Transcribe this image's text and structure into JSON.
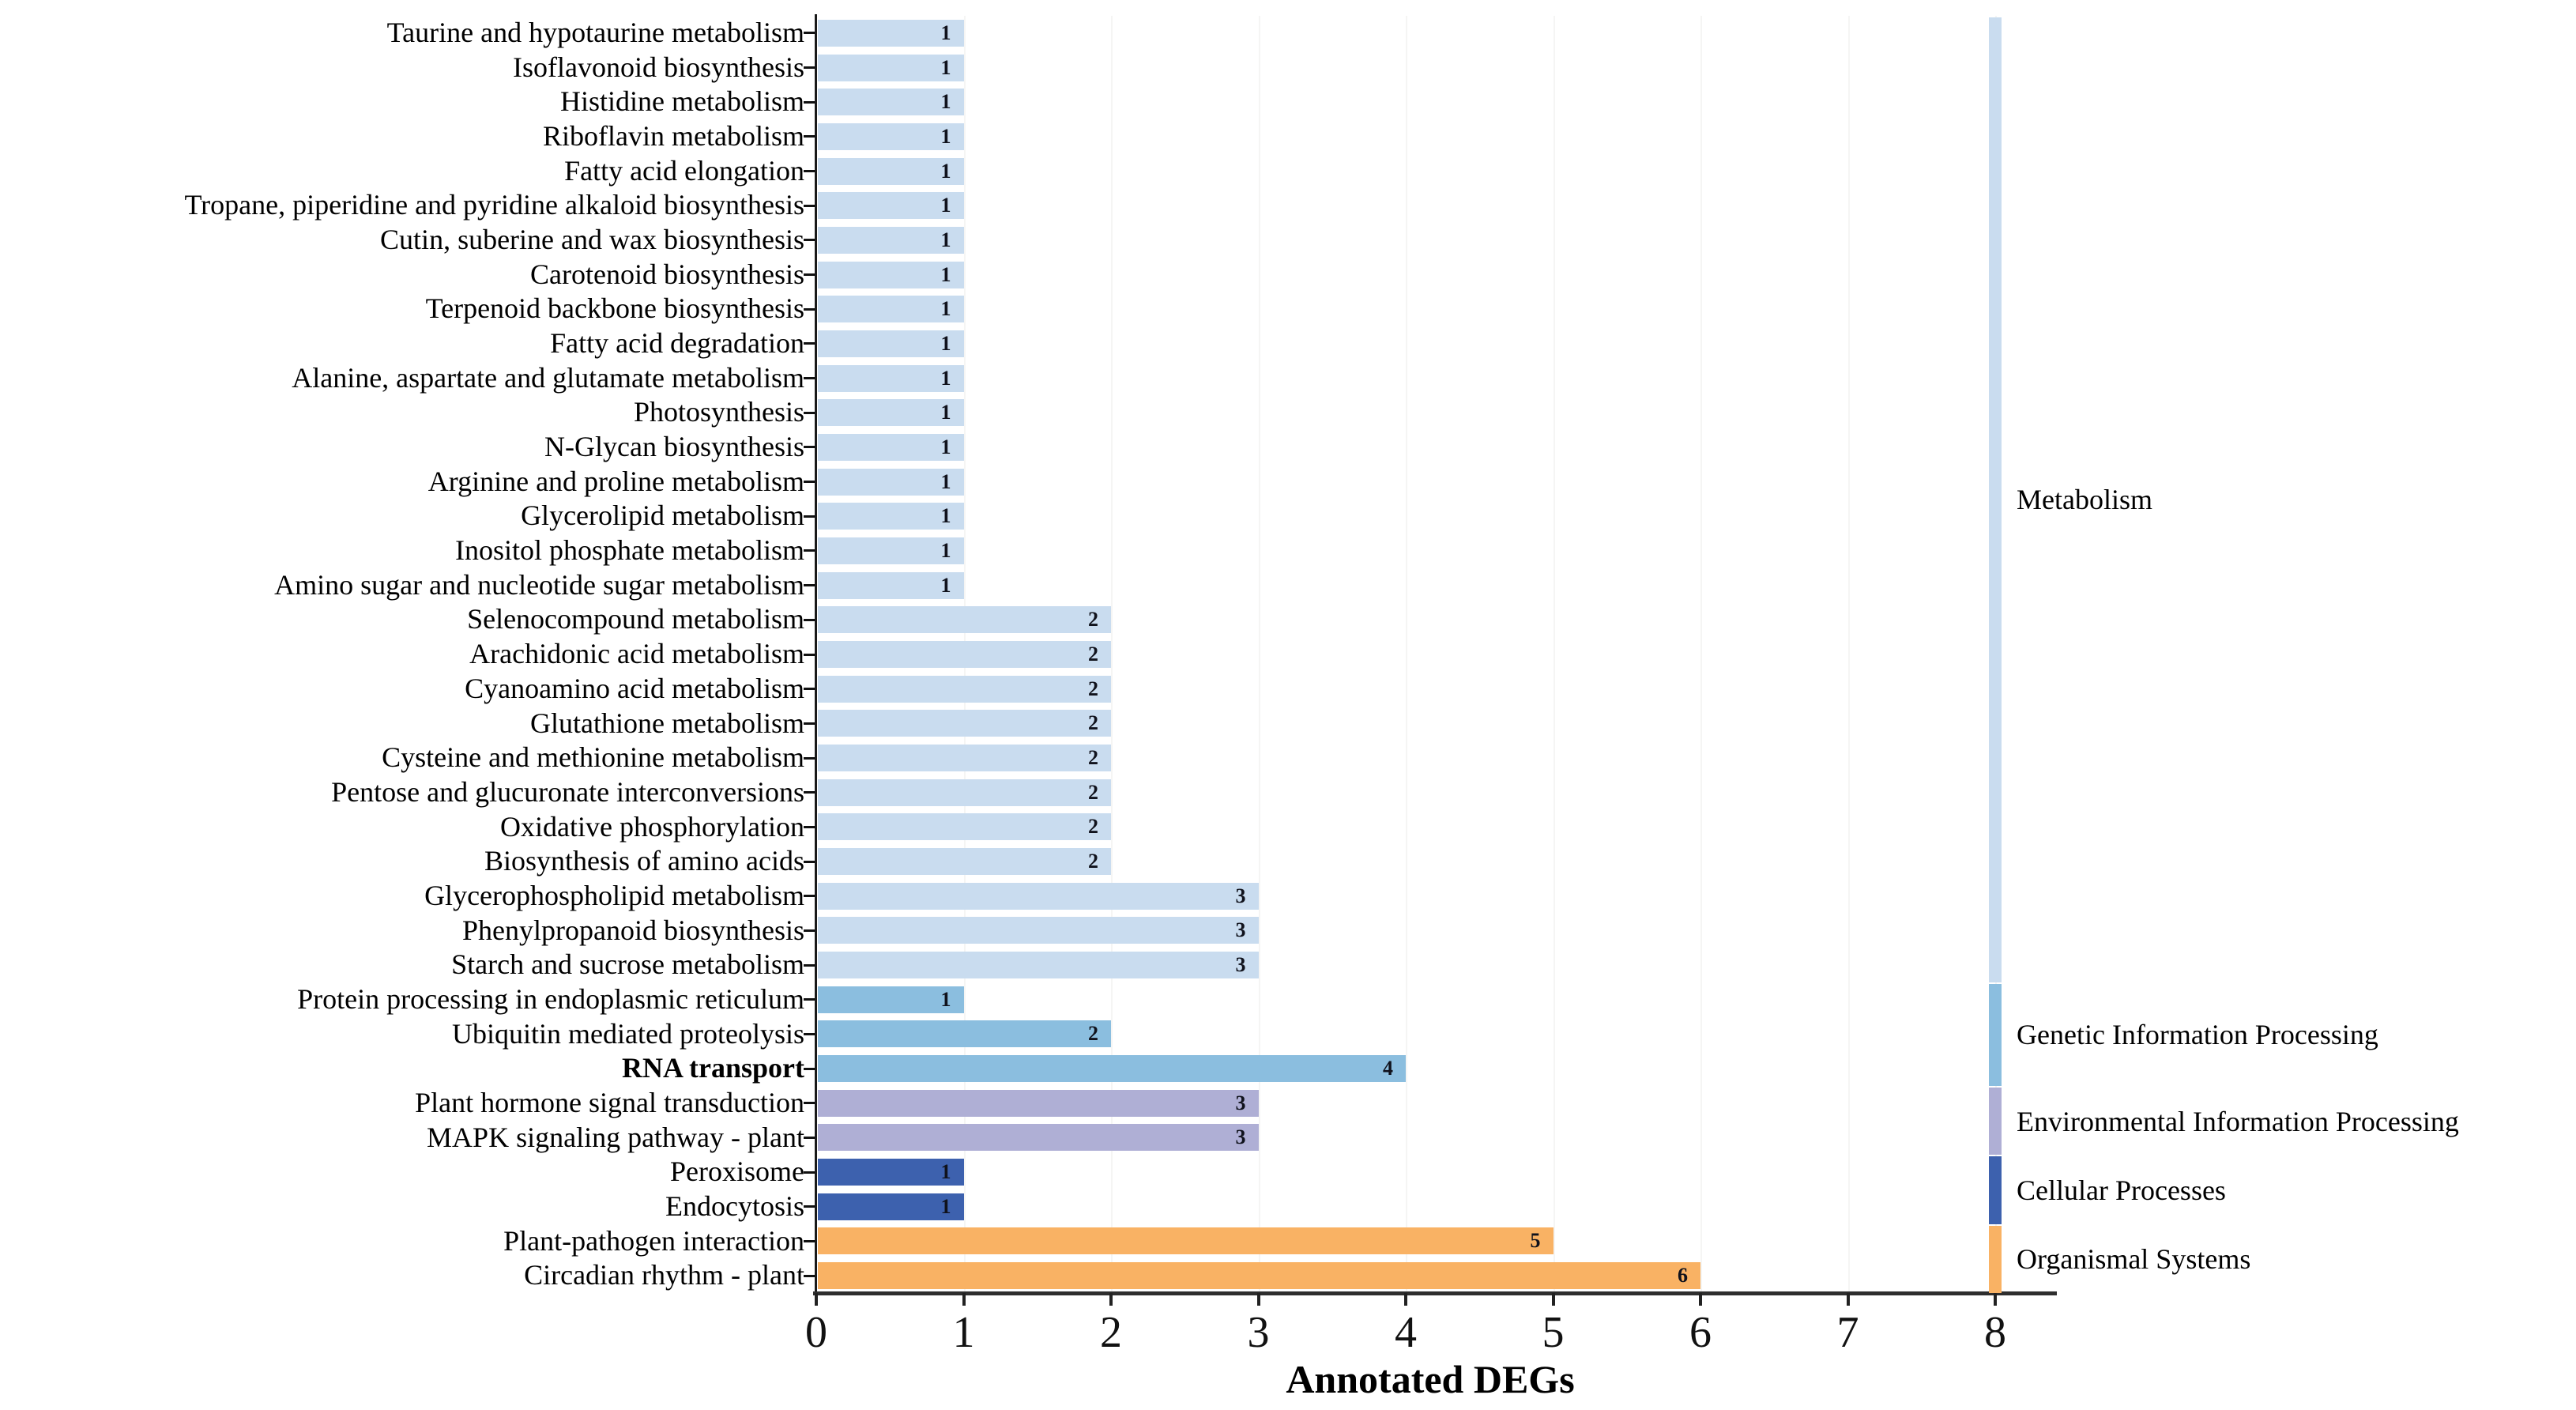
{
  "chart_data": {
    "type": "bar",
    "orientation": "horizontal",
    "title": "",
    "xlabel": "Annotated DEGs",
    "ylabel": "",
    "xlim": [
      0,
      8
    ],
    "xticks": [
      "0",
      "1",
      "2",
      "3",
      "4",
      "5",
      "6",
      "7",
      "8"
    ],
    "grid": "faint vertical gridlines at integer ticks",
    "legend_position": "right color strip with category labels",
    "value_labels_shown": true,
    "groups": [
      {
        "name": "Metabolism",
        "color": "#C9DCEF"
      },
      {
        "name": "Genetic Information Processing",
        "color": "#8BBEDF"
      },
      {
        "name": "Environmental Information Processing",
        "color": "#AFAFD5"
      },
      {
        "name": "Cellular Processes",
        "color": "#3D61AE"
      },
      {
        "name": "Organismal Systems",
        "color": "#F9B264"
      }
    ],
    "bars": [
      {
        "label": "Taurine and hypotaurine metabolism",
        "value": 1,
        "group": "Metabolism"
      },
      {
        "label": "Isoflavonoid biosynthesis",
        "value": 1,
        "group": "Metabolism"
      },
      {
        "label": "Histidine metabolism",
        "value": 1,
        "group": "Metabolism"
      },
      {
        "label": "Riboflavin metabolism",
        "value": 1,
        "group": "Metabolism"
      },
      {
        "label": "Fatty acid elongation",
        "value": 1,
        "group": "Metabolism"
      },
      {
        "label": "Tropane, piperidine and pyridine alkaloid biosynthesis",
        "value": 1,
        "group": "Metabolism"
      },
      {
        "label": "Cutin, suberine and wax biosynthesis",
        "value": 1,
        "group": "Metabolism"
      },
      {
        "label": "Carotenoid biosynthesis",
        "value": 1,
        "group": "Metabolism"
      },
      {
        "label": "Terpenoid backbone biosynthesis",
        "value": 1,
        "group": "Metabolism"
      },
      {
        "label": "Fatty acid degradation",
        "value": 1,
        "group": "Metabolism"
      },
      {
        "label": "Alanine, aspartate and glutamate metabolism",
        "value": 1,
        "group": "Metabolism"
      },
      {
        "label": "Photosynthesis",
        "value": 1,
        "group": "Metabolism"
      },
      {
        "label": "N-Glycan biosynthesis",
        "value": 1,
        "group": "Metabolism"
      },
      {
        "label": "Arginine and proline metabolism",
        "value": 1,
        "group": "Metabolism"
      },
      {
        "label": "Glycerolipid metabolism",
        "value": 1,
        "group": "Metabolism"
      },
      {
        "label": "Inositol phosphate metabolism",
        "value": 1,
        "group": "Metabolism"
      },
      {
        "label": "Amino sugar and nucleotide sugar metabolism",
        "value": 1,
        "group": "Metabolism"
      },
      {
        "label": "Selenocompound metabolism",
        "value": 2,
        "group": "Metabolism"
      },
      {
        "label": "Arachidonic acid metabolism",
        "value": 2,
        "group": "Metabolism"
      },
      {
        "label": "Cyanoamino acid metabolism",
        "value": 2,
        "group": "Metabolism"
      },
      {
        "label": "Glutathione metabolism",
        "value": 2,
        "group": "Metabolism"
      },
      {
        "label": "Cysteine and methionine metabolism",
        "value": 2,
        "group": "Metabolism"
      },
      {
        "label": "Pentose and glucuronate interconversions",
        "value": 2,
        "group": "Metabolism"
      },
      {
        "label": "Oxidative phosphorylation",
        "value": 2,
        "group": "Metabolism"
      },
      {
        "label": "Biosynthesis of amino acids",
        "value": 2,
        "group": "Metabolism"
      },
      {
        "label": "Glycerophospholipid metabolism",
        "value": 3,
        "group": "Metabolism"
      },
      {
        "label": "Phenylpropanoid biosynthesis",
        "value": 3,
        "group": "Metabolism"
      },
      {
        "label": "Starch and sucrose metabolism",
        "value": 3,
        "group": "Metabolism"
      },
      {
        "label": "Protein processing in endoplasmic reticulum",
        "value": 1,
        "group": "Genetic Information Processing"
      },
      {
        "label": "Ubiquitin mediated proteolysis",
        "value": 2,
        "group": "Genetic Information Processing"
      },
      {
        "label": "RNA transport",
        "value": 4,
        "group": "Genetic Information Processing",
        "bold": true
      },
      {
        "label": "Plant hormone signal transduction",
        "value": 3,
        "group": "Environmental Information Processing"
      },
      {
        "label": "MAPK signaling pathway - plant",
        "value": 3,
        "group": "Environmental Information Processing"
      },
      {
        "label": "Peroxisome",
        "value": 1,
        "group": "Cellular Processes"
      },
      {
        "label": "Endocytosis",
        "value": 1,
        "group": "Cellular Processes"
      },
      {
        "label": "Plant-pathogen interaction",
        "value": 5,
        "group": "Organismal Systems"
      },
      {
        "label": "Circadian rhythm - plant",
        "value": 6,
        "group": "Organismal Systems"
      }
    ]
  }
}
